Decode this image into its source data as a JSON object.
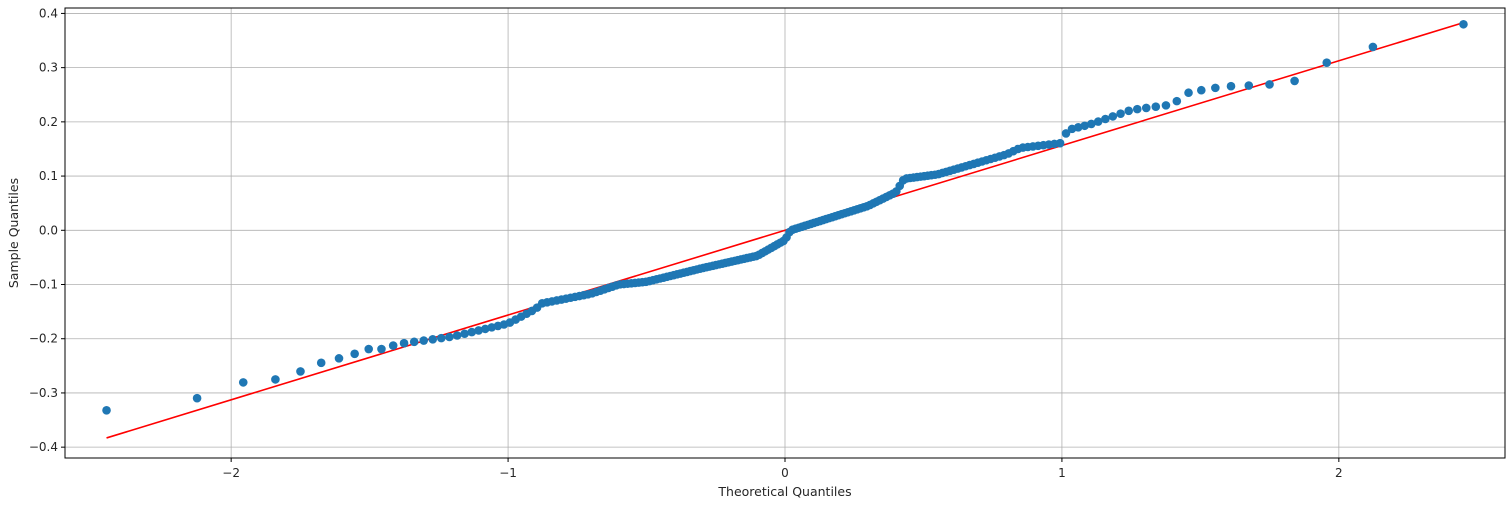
{
  "chart_data": {
    "type": "scatter",
    "title": "",
    "xlabel": "Theoretical Quantiles",
    "ylabel": "Sample Quantiles",
    "xlim": [
      -2.6,
      2.6
    ],
    "ylim": [
      -0.42,
      0.41
    ],
    "grid": true,
    "x_ticks": [
      {
        "value": -2,
        "label": "−2"
      },
      {
        "value": -1,
        "label": "−1"
      },
      {
        "value": 0,
        "label": "0"
      },
      {
        "value": 1,
        "label": "1"
      },
      {
        "value": 2,
        "label": "2"
      }
    ],
    "y_ticks": [
      {
        "value": -0.4,
        "label": "−0.4"
      },
      {
        "value": -0.3,
        "label": "−0.3"
      },
      {
        "value": -0.2,
        "label": "−0.2"
      },
      {
        "value": -0.1,
        "label": "−0.1"
      },
      {
        "value": 0.0,
        "label": "0.0"
      },
      {
        "value": 0.1,
        "label": "0.1"
      },
      {
        "value": 0.2,
        "label": "0.2"
      },
      {
        "value": 0.3,
        "label": "0.3"
      },
      {
        "value": 0.4,
        "label": "0.4"
      }
    ],
    "colors": {
      "points": "#1f77b4",
      "line": "#ff0000",
      "grid": "#b0b0b0"
    },
    "knots": [
      [
        -2.45,
        -0.332
      ],
      [
        -2.19,
        -0.327
      ],
      [
        -2.02,
        -0.283
      ],
      [
        -1.89,
        -0.278
      ],
      [
        -1.79,
        -0.272
      ],
      [
        -1.71,
        -0.249
      ],
      [
        -1.64,
        -0.24
      ],
      [
        -1.57,
        -0.231
      ],
      [
        -1.51,
        -0.219
      ],
      [
        -1.45,
        -0.219
      ],
      [
        -1.4,
        -0.21
      ],
      [
        -1.2,
        -0.196
      ],
      [
        -1.0,
        -0.172
      ],
      [
        -0.9,
        -0.145
      ],
      [
        -0.88,
        -0.135
      ],
      [
        -0.7,
        -0.117
      ],
      [
        -0.6,
        -0.1
      ],
      [
        -0.5,
        -0.095
      ],
      [
        -0.3,
        -0.07
      ],
      [
        -0.1,
        -0.047
      ],
      [
        0.0,
        -0.018
      ],
      [
        0.02,
        0.0
      ],
      [
        0.3,
        0.045
      ],
      [
        0.4,
        0.07
      ],
      [
        0.43,
        0.095
      ],
      [
        0.55,
        0.103
      ],
      [
        0.8,
        0.14
      ],
      [
        0.85,
        0.152
      ],
      [
        1.0,
        0.161
      ],
      [
        1.02,
        0.185
      ],
      [
        1.1,
        0.195
      ],
      [
        1.25,
        0.222
      ],
      [
        1.4,
        0.232
      ],
      [
        1.45,
        0.253
      ],
      [
        1.51,
        0.259
      ],
      [
        1.57,
        0.264
      ],
      [
        1.64,
        0.267
      ],
      [
        1.71,
        0.267
      ],
      [
        1.79,
        0.271
      ],
      [
        1.89,
        0.28
      ],
      [
        2.02,
        0.337
      ],
      [
        2.19,
        0.339
      ],
      [
        2.45,
        0.38
      ]
    ],
    "n_points": 200,
    "reference_line": {
      "x": [
        -2.45,
        2.45
      ],
      "y": [
        -0.383,
        0.383
      ]
    }
  }
}
